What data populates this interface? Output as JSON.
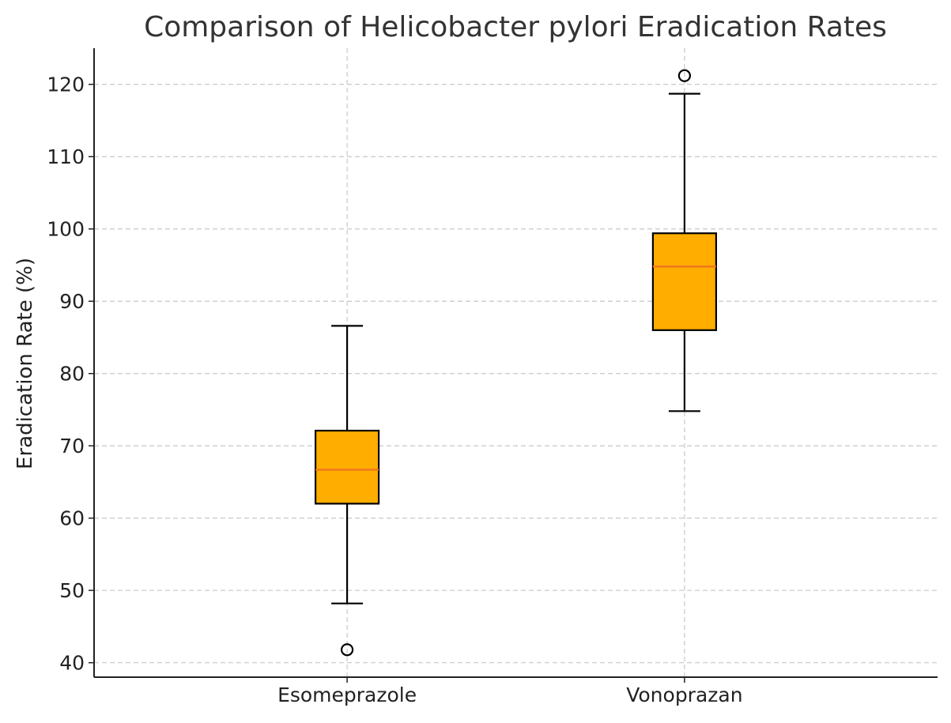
{
  "chart_data": {
    "type": "box",
    "title": "Comparison of Helicobacter pylori Eradication Rates",
    "xlabel": "",
    "ylabel": "Eradication Rate (%)",
    "ylim": [
      38,
      125
    ],
    "yticks": [
      40,
      50,
      60,
      70,
      80,
      90,
      100,
      110,
      120
    ],
    "grid": true,
    "categories": [
      "Esomeprazole",
      "Vonoprazan"
    ],
    "boxes": [
      {
        "category": "Esomeprazole",
        "whisker_low": 48.2,
        "q1": 62.0,
        "median": 66.7,
        "q3": 72.1,
        "whisker_high": 86.6,
        "outliers": [
          41.8
        ]
      },
      {
        "category": "Vonoprazan",
        "whisker_low": 74.8,
        "q1": 86.0,
        "median": 94.8,
        "q3": 99.4,
        "whisker_high": 118.7,
        "outliers": [
          121.2
        ]
      }
    ],
    "colors": {
      "box_fill": "#FFAE00",
      "median": "#F0741E",
      "edge": "#000000",
      "grid": "#C8C8C8"
    }
  }
}
